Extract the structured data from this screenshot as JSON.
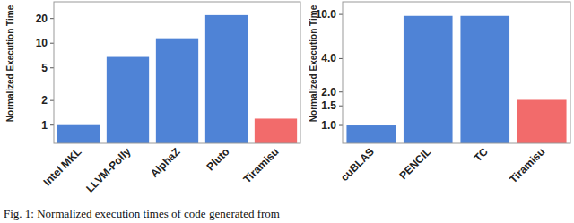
{
  "chart_data": [
    {
      "type": "bar",
      "y_label": "Normalized Execution Time",
      "categories": [
        "Intel MKL",
        "LLVM-Polly",
        "AlphaZ",
        "Pluto",
        "Tiramisu"
      ],
      "values": [
        1,
        6.8,
        11.5,
        22,
        1.2
      ],
      "colors": [
        "#4f83d6",
        "#4f83d6",
        "#4f83d6",
        "#4f83d6",
        "#f26b6b"
      ],
      "log": "y",
      "grid": false,
      "ylim": [
        0.6,
        32
      ],
      "yticks": [
        1,
        2,
        5,
        10,
        20
      ]
    },
    {
      "type": "bar",
      "y_label": "Normalized Execution Time",
      "categories": [
        "cuBLAS",
        "PENCIL",
        "TC",
        "Tiramisu"
      ],
      "values": [
        1,
        9.7,
        9.7,
        1.7
      ],
      "colors": [
        "#4f83d6",
        "#4f83d6",
        "#4f83d6",
        "#f26b6b"
      ],
      "log": "y",
      "grid": false,
      "ylim": [
        0.69,
        13
      ],
      "yticks": [
        {
          "value": 1,
          "label": "1.0"
        },
        {
          "value": 1.5,
          "label": "1.5"
        },
        {
          "value": 2,
          "label": "2.0"
        },
        {
          "value": 4,
          "label": "4.0"
        },
        {
          "value": 10,
          "label": "10.0"
        }
      ]
    }
  ],
  "caption": "Fig. 1: Normalized execution times of code generated from"
}
